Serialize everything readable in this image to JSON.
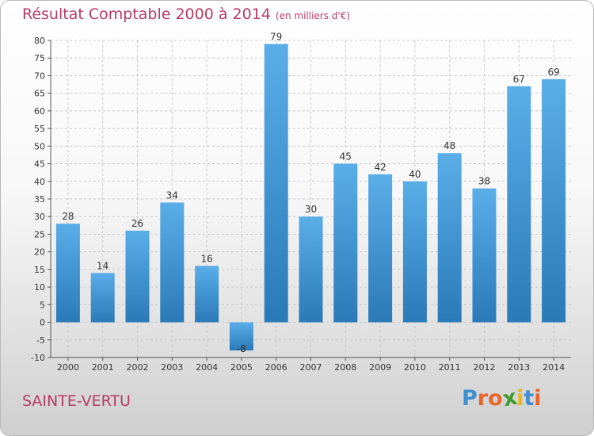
{
  "title": "Résultat Comptable 2000 à 2014",
  "subtitle": "(en milliers d'€)",
  "city": "SAINTE-VERTU",
  "logo": {
    "text": "Proxiti",
    "letters": [
      "P",
      "r",
      "o",
      "x",
      "i",
      "t",
      "i"
    ],
    "colors": [
      "#3f8fd0",
      "#e8662a",
      "#e8662a",
      "#3f9b2e",
      "#e8b71c",
      "#3f8fd0",
      "#e8662a"
    ]
  },
  "colors": {
    "bar_top": "#5aaee8",
    "bar_bottom": "#2a7ab8",
    "text": "#b73b63",
    "grid": "#c8c8c8"
  },
  "chart_data": {
    "type": "bar",
    "title": "Résultat Comptable 2000 à 2014",
    "unit": "en milliers d'€",
    "categories": [
      "2000",
      "2001",
      "2002",
      "2003",
      "2004",
      "2005",
      "2006",
      "2007",
      "2008",
      "2009",
      "2010",
      "2011",
      "2012",
      "2013",
      "2014"
    ],
    "values": [
      28,
      14,
      26,
      34,
      16,
      -8,
      79,
      30,
      45,
      42,
      40,
      48,
      38,
      67,
      69
    ],
    "ylim": [
      -10,
      80
    ],
    "yticks": [
      -10,
      -5,
      0,
      5,
      10,
      15,
      20,
      25,
      30,
      35,
      40,
      45,
      50,
      55,
      60,
      65,
      70,
      75,
      80
    ],
    "grid": true
  }
}
